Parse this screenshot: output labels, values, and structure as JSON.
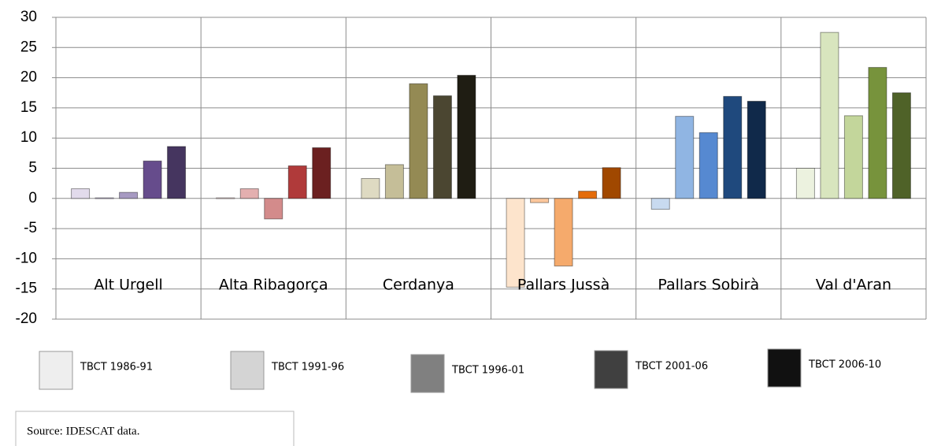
{
  "chart_data": {
    "type": "bar",
    "categories": [
      "Alt Urgell",
      "Alta Ribagorça",
      "Cerdanya",
      "Pallars Jussà",
      "Pallars Sobirà",
      "Val d'Aran"
    ],
    "series": [
      {
        "name": "TBCT 1986-91",
        "color": "#eeeeee",
        "colors": [
          "#e2dbec",
          "#f3dada",
          "#dedac2",
          "#fde4cc",
          "#c8daf0",
          "#ecf2df"
        ],
        "values": [
          1.6,
          0.1,
          3.3,
          -14.7,
          -1.8,
          5.0
        ]
      },
      {
        "name": "TBCT 1991-96",
        "color": "#d4d4d4",
        "colors": [
          "#c9bfdb",
          "#e3afaf",
          "#c5be98",
          "#fbc79c",
          "#90b5e3",
          "#d8e5be"
        ],
        "values": [
          0.1,
          1.6,
          5.6,
          -0.7,
          13.6,
          27.5
        ]
      },
      {
        "name": "TBCT 1996-01",
        "color": "#808080",
        "colors": [
          "#a79ac2",
          "#d38b8b",
          "#948a54",
          "#f5aa6c",
          "#5689d1",
          "#c3d69b"
        ],
        "values": [
          1.0,
          -3.4,
          19.0,
          -11.2,
          10.9,
          13.7
        ]
      },
      {
        "name": "TBCT 2001-06",
        "color": "#404040",
        "colors": [
          "#664c8c",
          "#b03a3a",
          "#4b4631",
          "#e46c0a",
          "#1f497d",
          "#77933c"
        ],
        "values": [
          6.2,
          5.4,
          17.0,
          1.2,
          16.9,
          21.7
        ]
      },
      {
        "name": "TBCT 2006-10",
        "color": "#111111",
        "colors": [
          "#45355f",
          "#6b2020",
          "#1f1d13",
          "#a04800",
          "#10294a",
          "#4f6228"
        ],
        "values": [
          8.6,
          8.4,
          20.4,
          5.1,
          16.1,
          17.5
        ]
      }
    ],
    "ylim": [
      -20,
      30
    ],
    "yticks": [
      30,
      25,
      20,
      15,
      10,
      5,
      0,
      -5,
      -10,
      -15,
      -20
    ],
    "grid": true,
    "source": "Source: IDESCAT data."
  }
}
